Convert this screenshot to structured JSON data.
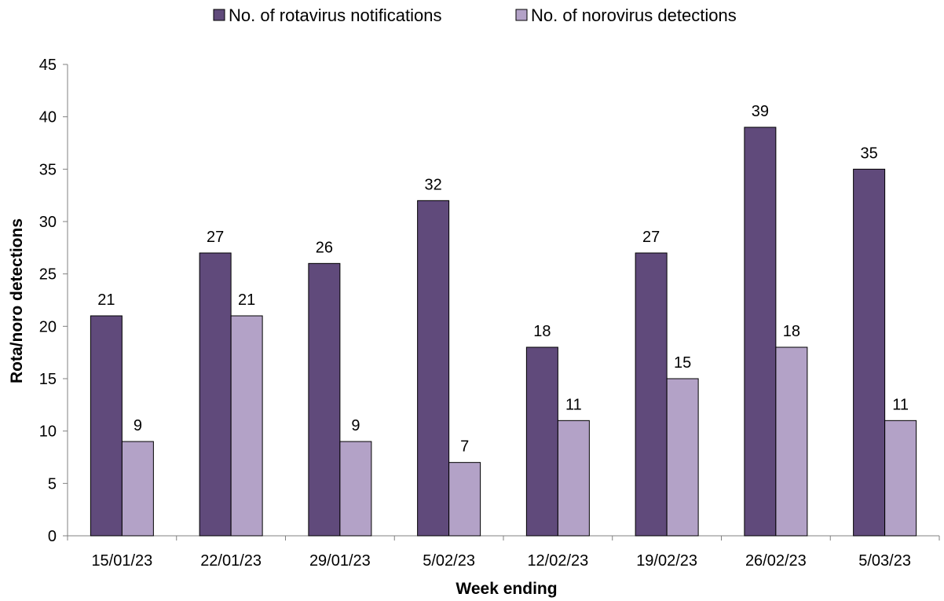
{
  "chart_data": {
    "type": "bar",
    "title": "",
    "xlabel": "Week ending",
    "ylabel": "Rota/noro detections",
    "categories": [
      "15/01/23",
      "22/01/23",
      "29/01/23",
      "5/02/23",
      "12/02/23",
      "19/02/23",
      "26/02/23",
      "5/03/23"
    ],
    "series": [
      {
        "name": "No. of rotavirus notifications",
        "color": "#604a7b",
        "values": [
          21,
          27,
          26,
          32,
          18,
          27,
          39,
          35
        ]
      },
      {
        "name": "No. of norovirus detections",
        "color": "#b3a2c7",
        "values": [
          9,
          21,
          9,
          7,
          11,
          15,
          18,
          11
        ]
      }
    ],
    "ylim": [
      0,
      45
    ],
    "yticks": [
      0,
      5,
      10,
      15,
      20,
      25,
      30,
      35,
      40,
      45
    ],
    "grid": false,
    "legend_position": "top",
    "data_labels": true
  }
}
